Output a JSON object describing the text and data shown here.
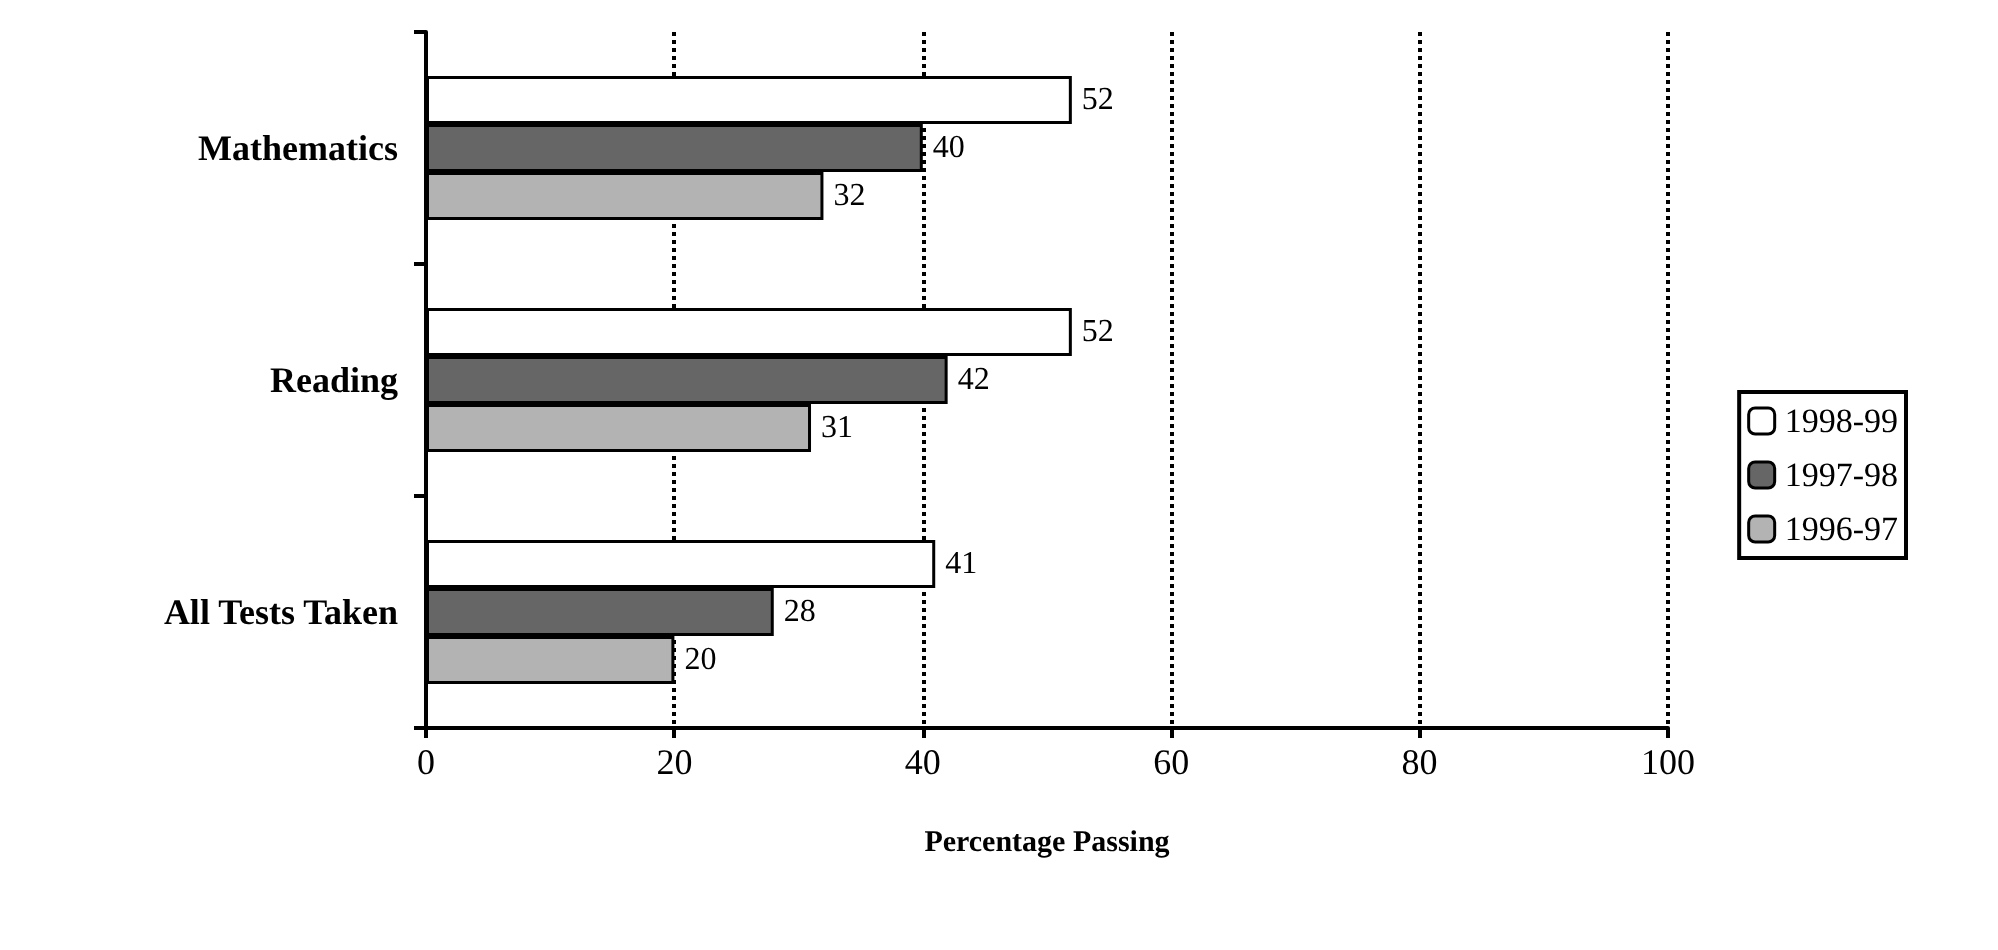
{
  "chart_data": {
    "type": "bar",
    "orientation": "horizontal",
    "xlabel": "Percentage Passing",
    "categories": [
      "Mathematics",
      "Reading",
      "All Tests Taken"
    ],
    "series": [
      {
        "name": "1998-99",
        "color": "#ffffff",
        "values": [
          52,
          52,
          41
        ]
      },
      {
        "name": "1997-98",
        "color": "#666666",
        "values": [
          40,
          42,
          28
        ]
      },
      {
        "name": "1996-97",
        "color": "#b3b3b3",
        "values": [
          32,
          31,
          20
        ]
      }
    ],
    "xlim": [
      0,
      100
    ],
    "xticks": [
      0,
      20,
      40,
      60,
      80,
      100
    ],
    "grid": "x",
    "legend": "right",
    "data_labels": true
  }
}
